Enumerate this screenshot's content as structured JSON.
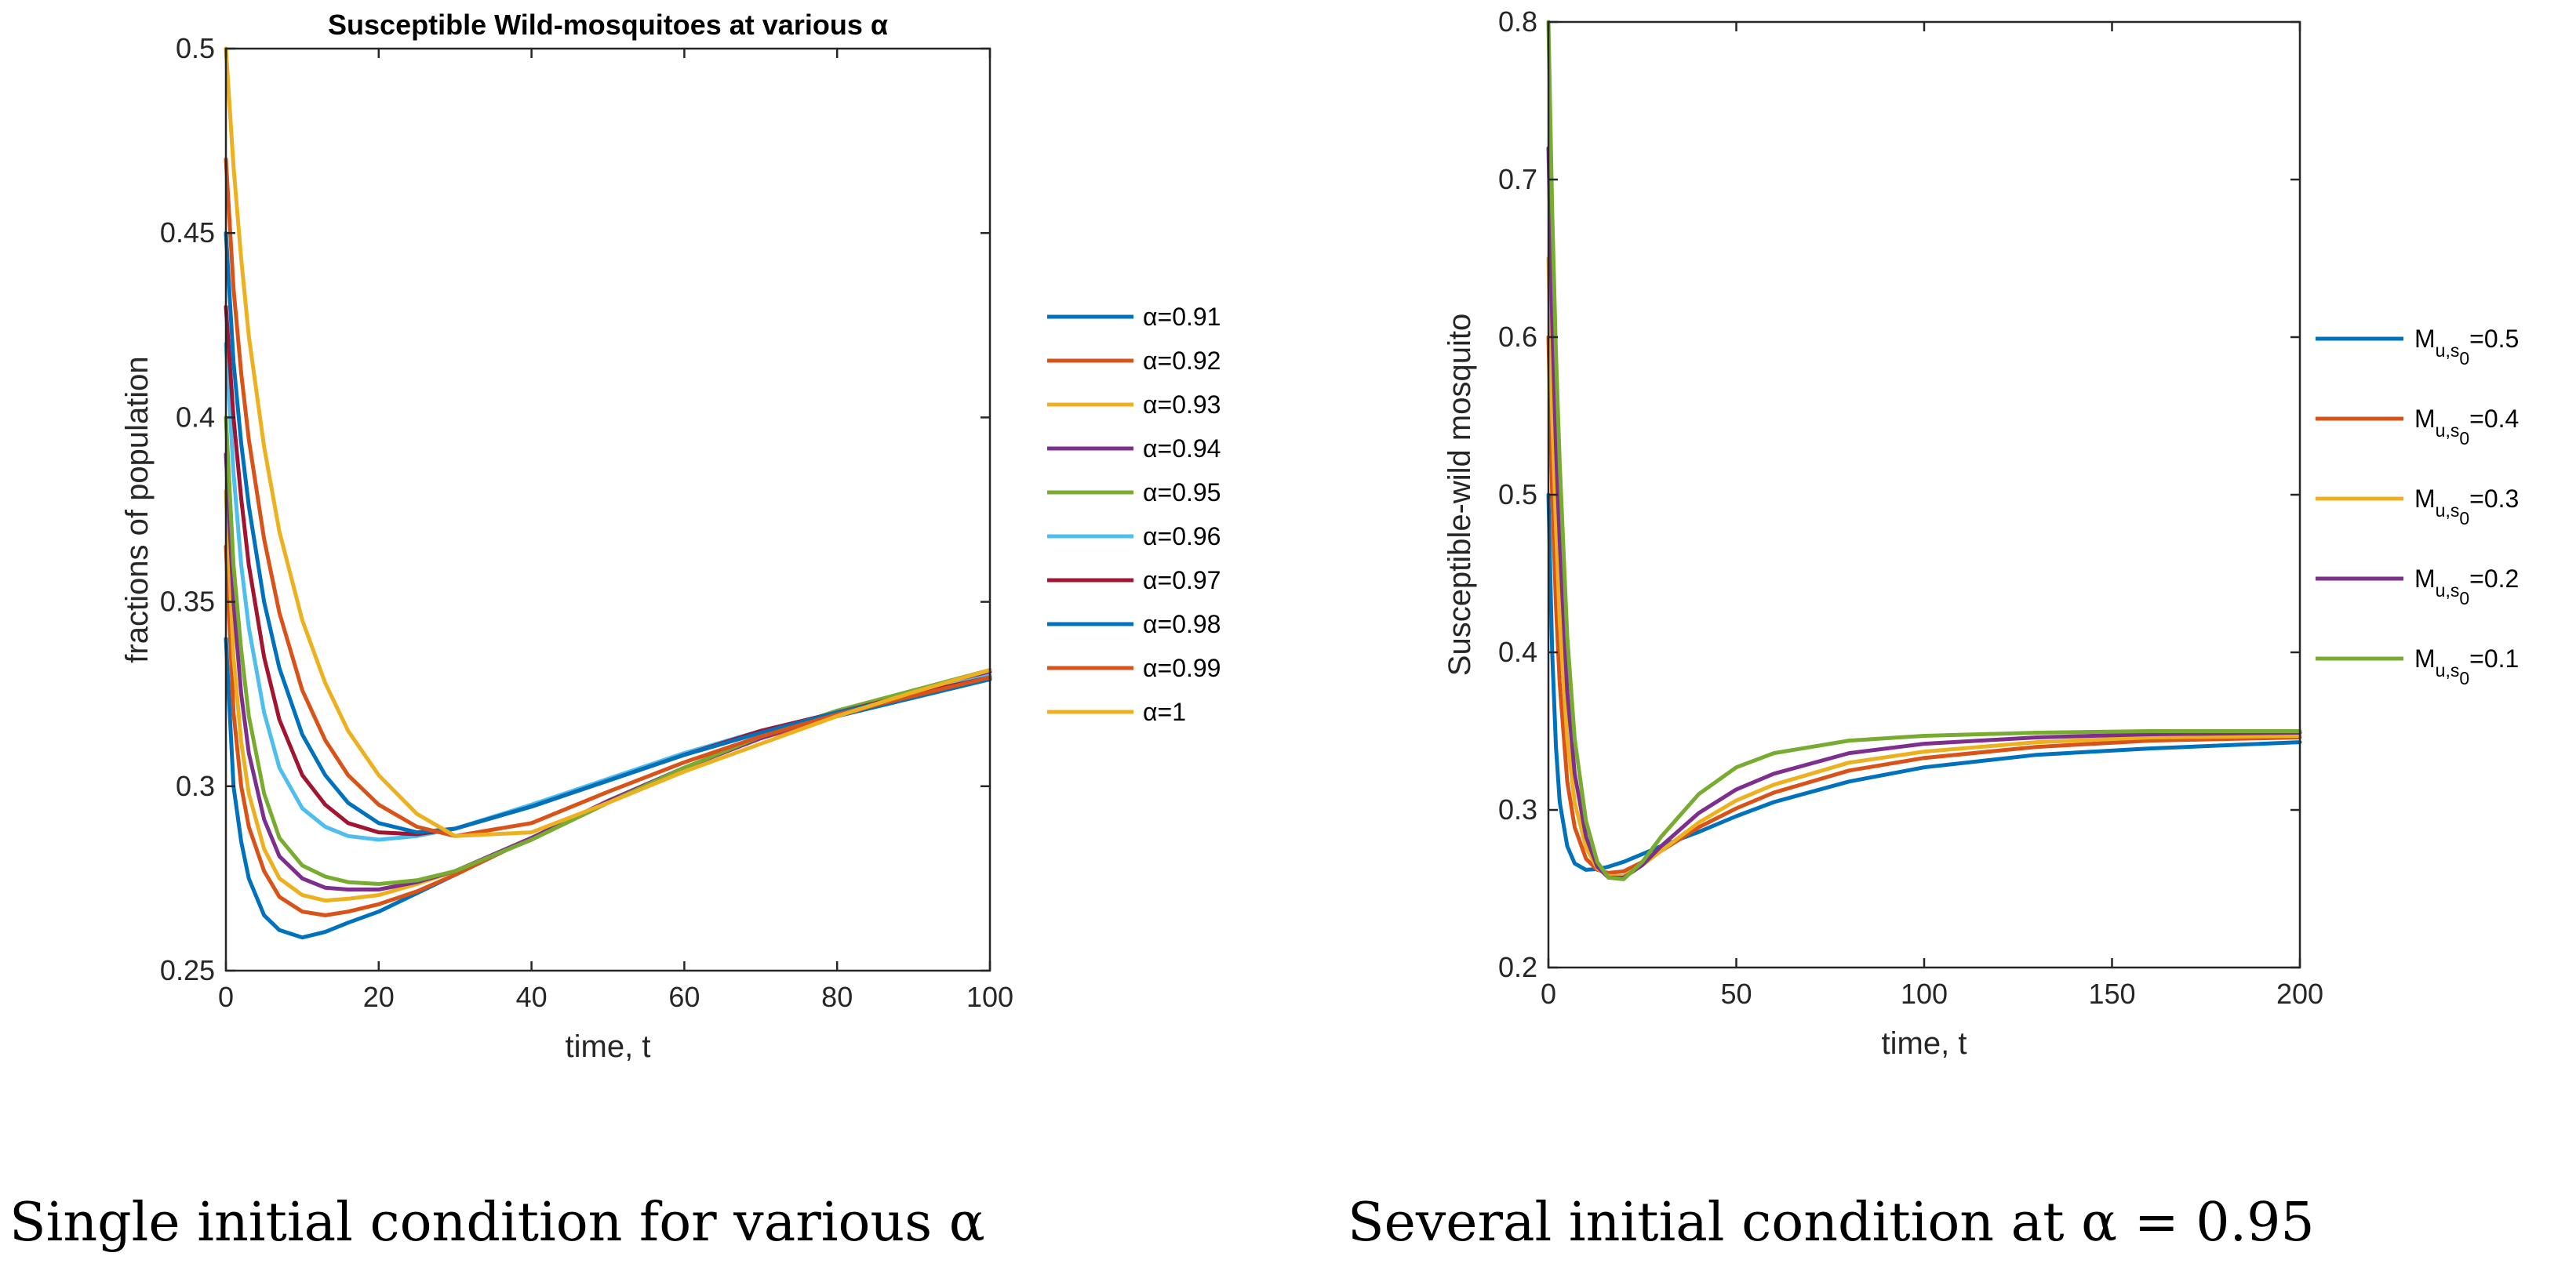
{
  "captions": {
    "left": "Single initial condition for various α",
    "right": "Several initial condition at α = 0.95"
  },
  "chart_data": [
    {
      "type": "line",
      "title": "Susceptible Wild-mosquitoes at various α",
      "xlabel": "time, t",
      "ylabel": "fractions of population",
      "xlim": [
        0,
        100
      ],
      "ylim": [
        0.25,
        0.5
      ],
      "xticks": [
        0,
        20,
        40,
        60,
        80,
        100
      ],
      "xtick_labels": [
        "0",
        "20",
        "40",
        "60",
        "80",
        "100"
      ],
      "yticks": [
        0.25,
        0.3,
        0.35,
        0.4,
        0.45,
        0.5
      ],
      "ytick_labels": [
        "0.25",
        "0.3",
        "0.35",
        "0.4",
        "0.45",
        "0.5"
      ],
      "legend_position": "outside-right",
      "series": [
        {
          "name": "α=0.91",
          "color": "#0072BD",
          "x": [
            0,
            1,
            2,
            3,
            5,
            7,
            10,
            13,
            16,
            20,
            25,
            30,
            40,
            50,
            60,
            70,
            80,
            90,
            100
          ],
          "y": [
            0.34,
            0.3,
            0.285,
            0.275,
            0.265,
            0.261,
            0.259,
            0.2605,
            0.263,
            0.266,
            0.271,
            0.276,
            0.286,
            0.296,
            0.305,
            0.313,
            0.319,
            0.324,
            0.329
          ]
        },
        {
          "name": "α=0.92",
          "color": "#D95319",
          "x": [
            0,
            1,
            2,
            3,
            5,
            7,
            10,
            13,
            16,
            20,
            25,
            30,
            40,
            50,
            60,
            70,
            80,
            90,
            100
          ],
          "y": [
            0.365,
            0.32,
            0.3,
            0.289,
            0.277,
            0.27,
            0.266,
            0.265,
            0.266,
            0.268,
            0.2715,
            0.276,
            0.286,
            0.296,
            0.305,
            0.313,
            0.319,
            0.325,
            0.33
          ]
        },
        {
          "name": "α=0.93",
          "color": "#EDB120",
          "x": [
            0,
            1,
            2,
            3,
            5,
            7,
            10,
            13,
            16,
            20,
            25,
            30,
            40,
            50,
            60,
            70,
            80,
            90,
            100
          ],
          "y": [
            0.38,
            0.335,
            0.312,
            0.298,
            0.283,
            0.275,
            0.2705,
            0.269,
            0.2695,
            0.2705,
            0.2735,
            0.277,
            0.286,
            0.296,
            0.305,
            0.313,
            0.32,
            0.325,
            0.33
          ]
        },
        {
          "name": "α=0.94",
          "color": "#7E2F8E",
          "x": [
            0,
            1,
            2,
            3,
            5,
            7,
            10,
            13,
            16,
            20,
            25,
            30,
            40,
            50,
            60,
            70,
            80,
            90,
            100
          ],
          "y": [
            0.39,
            0.35,
            0.325,
            0.309,
            0.291,
            0.281,
            0.275,
            0.2725,
            0.272,
            0.272,
            0.274,
            0.277,
            0.286,
            0.296,
            0.305,
            0.313,
            0.32,
            0.326,
            0.331
          ]
        },
        {
          "name": "α=0.95",
          "color": "#77AC30",
          "x": [
            0,
            1,
            2,
            3,
            5,
            7,
            10,
            13,
            16,
            20,
            25,
            30,
            40,
            50,
            60,
            70,
            80,
            90,
            100
          ],
          "y": [
            0.4,
            0.36,
            0.337,
            0.319,
            0.298,
            0.286,
            0.2785,
            0.2755,
            0.274,
            0.2735,
            0.2745,
            0.277,
            0.2855,
            0.2955,
            0.305,
            0.3135,
            0.3205,
            0.326,
            0.3315
          ]
        },
        {
          "name": "α=0.96",
          "color": "#4DBEEE",
          "x": [
            0,
            1,
            2,
            3,
            5,
            7,
            10,
            13,
            16,
            20,
            25,
            30,
            40,
            50,
            60,
            70,
            80,
            90,
            100
          ],
          "y": [
            0.42,
            0.385,
            0.36,
            0.343,
            0.32,
            0.305,
            0.294,
            0.289,
            0.2865,
            0.2855,
            0.2865,
            0.2885,
            0.295,
            0.302,
            0.309,
            0.315,
            0.32,
            0.325,
            0.33
          ]
        },
        {
          "name": "α=0.97",
          "color": "#A2142F",
          "x": [
            0,
            1,
            2,
            3,
            5,
            7,
            10,
            13,
            16,
            20,
            25,
            30,
            40,
            50,
            60,
            70,
            80,
            90,
            100
          ],
          "y": [
            0.43,
            0.4,
            0.378,
            0.36,
            0.335,
            0.318,
            0.303,
            0.295,
            0.29,
            0.2875,
            0.287,
            0.2885,
            0.2945,
            0.3015,
            0.3085,
            0.315,
            0.32,
            0.325,
            0.3295
          ]
        },
        {
          "name": "α=0.98",
          "color": "#0072BD",
          "x": [
            0,
            1,
            2,
            3,
            5,
            7,
            10,
            13,
            16,
            20,
            25,
            30,
            40,
            50,
            60,
            70,
            80,
            90,
            100
          ],
          "y": [
            0.45,
            0.415,
            0.393,
            0.376,
            0.35,
            0.332,
            0.314,
            0.303,
            0.2955,
            0.29,
            0.2875,
            0.2885,
            0.2945,
            0.3015,
            0.3085,
            0.3145,
            0.32,
            0.3245,
            0.329
          ]
        },
        {
          "name": "α=0.99",
          "color": "#D95319",
          "x": [
            0,
            1,
            2,
            3,
            5,
            7,
            10,
            13,
            16,
            20,
            25,
            30,
            40,
            50,
            60,
            70,
            80,
            90,
            100
          ],
          "y": [
            0.47,
            0.435,
            0.412,
            0.394,
            0.367,
            0.347,
            0.326,
            0.3125,
            0.303,
            0.295,
            0.289,
            0.2865,
            0.29,
            0.2985,
            0.3065,
            0.3135,
            0.3195,
            0.3245,
            0.3295
          ]
        },
        {
          "name": "α=1",
          "color": "#EDB120",
          "x": [
            0,
            1,
            2,
            3,
            5,
            7,
            10,
            13,
            16,
            20,
            25,
            30,
            40,
            50,
            60,
            70,
            80,
            90,
            100
          ],
          "y": [
            0.5,
            0.468,
            0.443,
            0.422,
            0.392,
            0.369,
            0.345,
            0.328,
            0.315,
            0.303,
            0.2925,
            0.2865,
            0.2875,
            0.2955,
            0.304,
            0.3115,
            0.319,
            0.3255,
            0.3315
          ]
        }
      ]
    },
    {
      "type": "line",
      "title": "",
      "xlabel": "time, t",
      "ylabel": "Susceptible-wild mosquito",
      "xlim": [
        0,
        200
      ],
      "ylim": [
        0.2,
        0.8
      ],
      "xticks": [
        0,
        50,
        100,
        150,
        200
      ],
      "xtick_labels": [
        "0",
        "50",
        "100",
        "150",
        "200"
      ],
      "yticks": [
        0.2,
        0.3,
        0.4,
        0.5,
        0.6,
        0.7,
        0.8
      ],
      "ytick_labels": [
        "0.2",
        "0.3",
        "0.4",
        "0.5",
        "0.6",
        "0.7",
        "0.8"
      ],
      "legend_position": "outside-right",
      "legend_var": "M",
      "legend_sub": "u,s",
      "legend_subsub": "0",
      "series": [
        {
          "name": "=0.5",
          "color": "#0072BD",
          "x": [
            0,
            1,
            2,
            3,
            5,
            7,
            10,
            13,
            16,
            20,
            25,
            30,
            40,
            50,
            60,
            80,
            100,
            130,
            160,
            200
          ],
          "y": [
            0.5,
            0.4,
            0.34,
            0.305,
            0.277,
            0.266,
            0.262,
            0.2625,
            0.264,
            0.267,
            0.272,
            0.277,
            0.286,
            0.296,
            0.305,
            0.318,
            0.327,
            0.335,
            0.339,
            0.343
          ]
        },
        {
          "name": "=0.4",
          "color": "#D95319",
          "x": [
            0,
            1,
            2,
            3,
            5,
            7,
            10,
            13,
            16,
            20,
            25,
            30,
            40,
            50,
            60,
            80,
            100,
            130,
            160,
            200
          ],
          "y": [
            0.6,
            0.5,
            0.43,
            0.38,
            0.318,
            0.289,
            0.269,
            0.262,
            0.26,
            0.261,
            0.267,
            0.274,
            0.289,
            0.301,
            0.311,
            0.325,
            0.333,
            0.34,
            0.344,
            0.346
          ]
        },
        {
          "name": "=0.3",
          "color": "#EDB120",
          "x": [
            0,
            1,
            2,
            3,
            5,
            7,
            10,
            13,
            16,
            20,
            25,
            30,
            40,
            50,
            60,
            80,
            100,
            130,
            160,
            200
          ],
          "y": [
            0.65,
            0.55,
            0.48,
            0.42,
            0.345,
            0.305,
            0.276,
            0.263,
            0.258,
            0.258,
            0.265,
            0.274,
            0.292,
            0.306,
            0.316,
            0.33,
            0.337,
            0.343,
            0.346,
            0.347
          ]
        },
        {
          "name": "=0.2",
          "color": "#7E2F8E",
          "x": [
            0,
            1,
            2,
            3,
            5,
            7,
            10,
            13,
            16,
            20,
            25,
            30,
            40,
            50,
            60,
            80,
            100,
            130,
            160,
            200
          ],
          "y": [
            0.72,
            0.61,
            0.53,
            0.47,
            0.375,
            0.323,
            0.283,
            0.264,
            0.257,
            0.257,
            0.265,
            0.277,
            0.298,
            0.313,
            0.323,
            0.336,
            0.342,
            0.346,
            0.348,
            0.349
          ]
        },
        {
          "name": "=0.1",
          "color": "#77AC30",
          "x": [
            0,
            1,
            2,
            3,
            5,
            7,
            10,
            13,
            16,
            20,
            25,
            30,
            40,
            50,
            60,
            80,
            100,
            130,
            160,
            200
          ],
          "y": [
            0.8,
            0.68,
            0.59,
            0.52,
            0.41,
            0.345,
            0.293,
            0.267,
            0.257,
            0.256,
            0.267,
            0.283,
            0.31,
            0.327,
            0.336,
            0.344,
            0.347,
            0.349,
            0.35,
            0.35
          ]
        }
      ]
    }
  ]
}
